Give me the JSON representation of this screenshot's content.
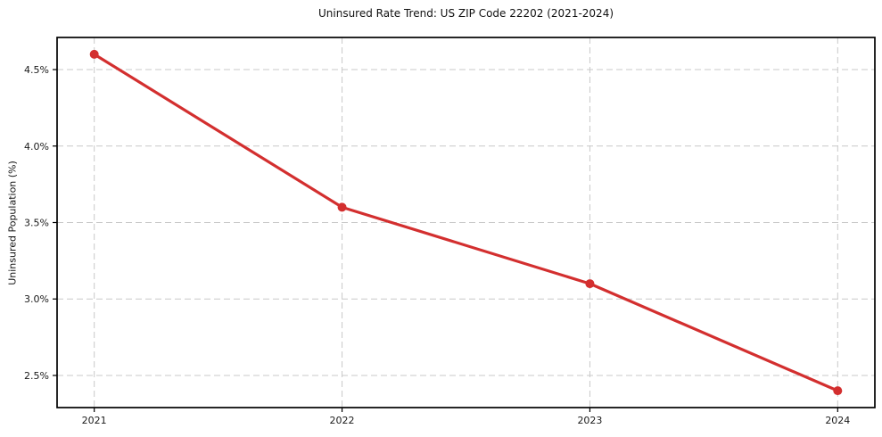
{
  "chart_data": {
    "type": "line",
    "title": "Uninsured Rate Trend: US ZIP Code 22202 (2021-2024)",
    "xlabel": "",
    "ylabel": "Uninsured Population (%)",
    "x": [
      2021,
      2022,
      2023,
      2024
    ],
    "values": [
      4.6,
      3.6,
      3.1,
      2.4
    ],
    "xtick_labels": [
      "2021",
      "2022",
      "2023",
      "2024"
    ],
    "yticks": [
      2.5,
      3.0,
      3.5,
      4.0,
      4.5
    ],
    "ytick_labels": [
      "2.5%",
      "3.0%",
      "3.5%",
      "4.0%",
      "4.5%"
    ],
    "xlim": [
      2020.85,
      2024.15
    ],
    "ylim": [
      2.29,
      4.71
    ],
    "grid": true,
    "grid_style": "dashed",
    "legend": "none",
    "line_color": "#d32f2f",
    "marker_color": "#d32f2f",
    "grid_color": "#c9c9c9",
    "spine_color": "#000000",
    "text_color": "#1a1a1a",
    "background_color": "#ffffff"
  }
}
